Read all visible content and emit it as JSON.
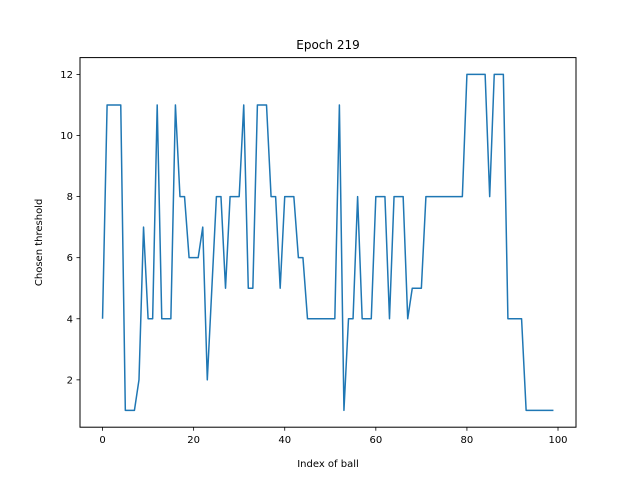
{
  "chart_data": {
    "type": "line",
    "title": "Epoch 219",
    "xlabel": "Index of ball",
    "ylabel": "Chosen threshold",
    "xlim": [
      -4.95,
      103.95
    ],
    "ylim": [
      0.45,
      12.55
    ],
    "xticks": [
      0,
      20,
      40,
      60,
      80,
      100
    ],
    "yticks": [
      2,
      4,
      6,
      8,
      10,
      12
    ],
    "grid": false,
    "series": [
      {
        "color": "#1f77b4",
        "x": [
          0,
          1,
          2,
          3,
          4,
          5,
          6,
          7,
          8,
          9,
          10,
          11,
          12,
          13,
          14,
          15,
          16,
          17,
          18,
          19,
          20,
          21,
          22,
          23,
          24,
          25,
          26,
          27,
          28,
          29,
          30,
          31,
          32,
          33,
          34,
          35,
          36,
          37,
          38,
          39,
          40,
          41,
          42,
          43,
          44,
          45,
          46,
          47,
          48,
          49,
          50,
          51,
          52,
          53,
          54,
          55,
          56,
          57,
          58,
          59,
          60,
          61,
          62,
          63,
          64,
          65,
          66,
          67,
          68,
          69,
          70,
          71,
          72,
          73,
          74,
          75,
          76,
          77,
          78,
          79,
          80,
          81,
          82,
          83,
          84,
          85,
          86,
          87,
          88,
          89,
          90,
          91,
          92,
          93,
          94,
          95,
          96,
          97,
          98,
          99
        ],
        "values": [
          4,
          11,
          11,
          11,
          11,
          1,
          1,
          1,
          2,
          7,
          4,
          4,
          11,
          4,
          4,
          4,
          11,
          8,
          8,
          6,
          6,
          6,
          7,
          2,
          5,
          8,
          8,
          5,
          8,
          8,
          8,
          11,
          5,
          5,
          11,
          11,
          11,
          8,
          8,
          5,
          8,
          8,
          8,
          6,
          6,
          4,
          4,
          4,
          4,
          4,
          4,
          4,
          11,
          1,
          4,
          4,
          8,
          4,
          4,
          4,
          8,
          8,
          8,
          4,
          8,
          8,
          8,
          4,
          5,
          5,
          5,
          8,
          8,
          8,
          8,
          8,
          8,
          8,
          8,
          8,
          12,
          12,
          12,
          12,
          12,
          8,
          12,
          12,
          12,
          4,
          4,
          4,
          4,
          1,
          1,
          1,
          1,
          1,
          1,
          1
        ]
      }
    ]
  }
}
